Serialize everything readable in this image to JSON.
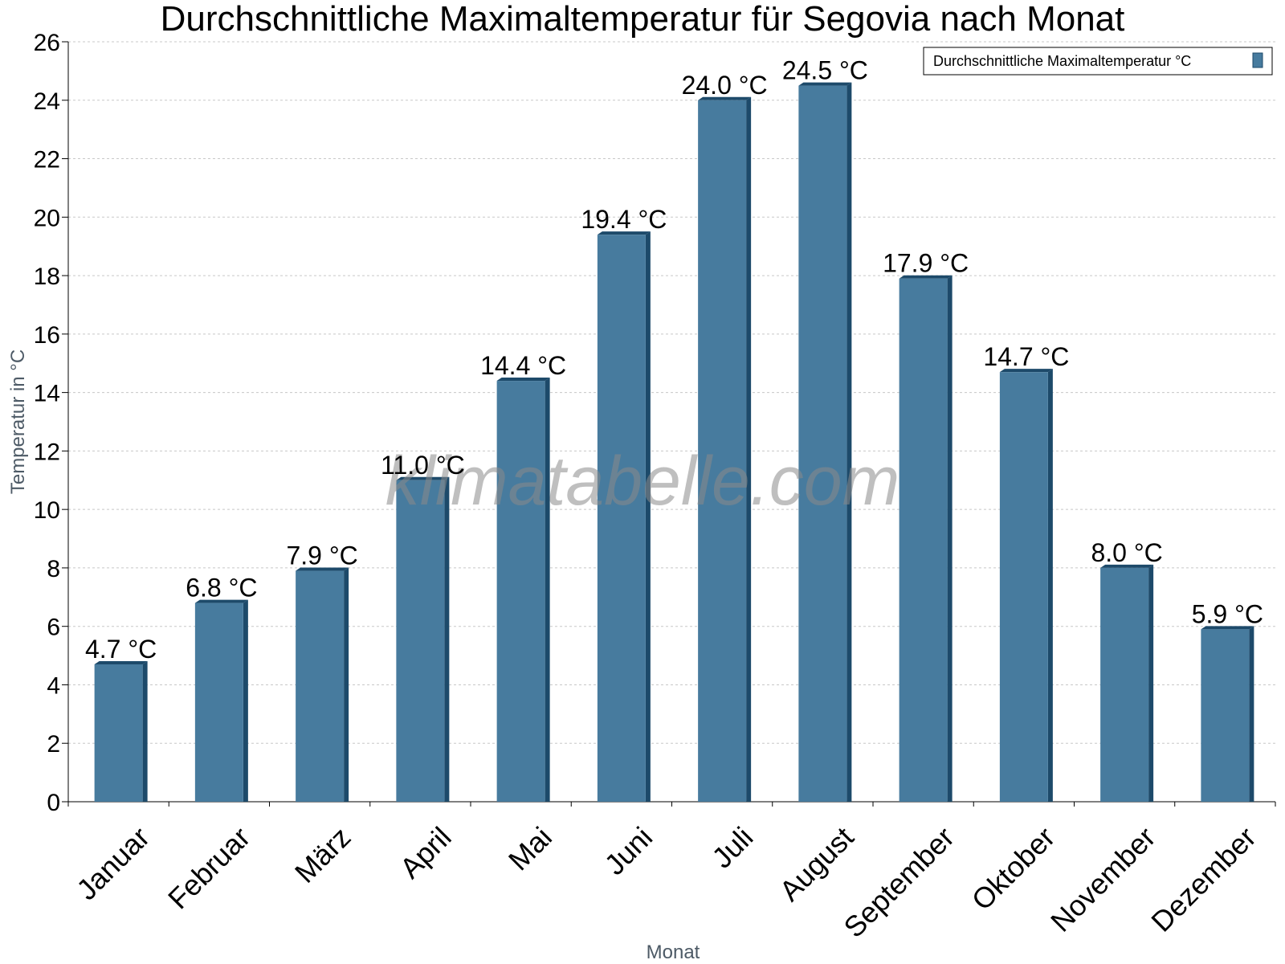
{
  "chart_data": {
    "type": "bar",
    "title": "Durchschnittliche Maximaltemperatur für Segovia nach Monat",
    "xlabel": "Monat",
    "ylabel": "Temperatur in °C",
    "categories": [
      "Januar",
      "Februar",
      "März",
      "April",
      "Mai",
      "Juni",
      "Juli",
      "August",
      "September",
      "Oktober",
      "November",
      "Dezember"
    ],
    "series": [
      {
        "name": "Durchschnittliche Maximaltemperatur °C",
        "values": [
          4.7,
          6.8,
          7.9,
          11.0,
          14.4,
          19.4,
          24.0,
          24.5,
          17.9,
          14.7,
          8.0,
          5.9
        ],
        "color": "#477b9e"
      }
    ],
    "data_labels": [
      "4.7 °C",
      "6.8 °C",
      "7.9 °C",
      "11.0 °C",
      "14.4 °C",
      "19.4 °C",
      "24.0 °C",
      "24.5 °C",
      "17.9 °C",
      "14.7 °C",
      "8.0 °C",
      "5.9 °C"
    ],
    "ylim": [
      0,
      26
    ],
    "yticks": [
      0,
      2,
      4,
      6,
      8,
      10,
      12,
      14,
      16,
      18,
      20,
      22,
      24,
      26
    ],
    "grid": true,
    "legend_position": "top-right",
    "watermark": "klimatabelle.com",
    "colors": {
      "bar": "#477b9e",
      "bar_side": "#1d4a6a",
      "grid": "#c8c8c8",
      "axis": "#000000"
    }
  }
}
